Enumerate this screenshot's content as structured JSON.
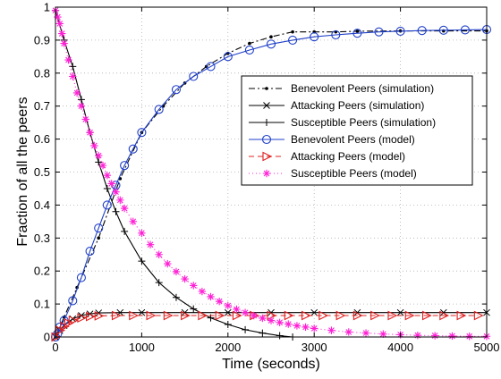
{
  "chart_data": {
    "type": "line",
    "title": "",
    "xlabel": "Time (seconds)",
    "ylabel": "Fraction of all the peers",
    "xlim": [
      0,
      5000
    ],
    "ylim": [
      0,
      1
    ],
    "xticks": [
      0,
      1000,
      2000,
      3000,
      4000,
      5000
    ],
    "yticks": [
      0,
      0.1,
      0.2,
      0.3,
      0.4,
      0.5,
      0.6,
      0.7,
      0.8,
      0.9,
      1
    ],
    "xtick_labels": [
      "0",
      "1000",
      "2000",
      "3000",
      "4000",
      "5000"
    ],
    "ytick_labels": [
      "0",
      "0.1",
      "0.2",
      "0.3",
      "0.4",
      "0.5",
      "0.6",
      "0.7",
      "0.8",
      "0.9",
      "1"
    ],
    "grid": true,
    "legend_position": "right",
    "series": [
      {
        "name": "Benevolent Peers (simulation)",
        "color": "#000000",
        "dash": "dashdot",
        "marker": "dot",
        "x": [
          0,
          100,
          250,
          500,
          750,
          1000,
          1250,
          1500,
          1750,
          2000,
          2250,
          2500,
          2750,
          3000,
          3250,
          3500,
          4000,
          4500,
          5000
        ],
        "y": [
          0,
          0.06,
          0.15,
          0.3,
          0.48,
          0.62,
          0.7,
          0.77,
          0.82,
          0.86,
          0.89,
          0.91,
          0.925,
          0.925,
          0.925,
          0.927,
          0.928,
          0.928,
          0.928
        ]
      },
      {
        "name": "Attacking Peers (simulation)",
        "color": "#000000",
        "dash": "solid",
        "marker": "x",
        "x": [
          0,
          50,
          100,
          200,
          300,
          400,
          500,
          750,
          1000,
          1500,
          2000,
          2500,
          3000,
          3500,
          4000,
          4500,
          5000
        ],
        "y": [
          0,
          0.02,
          0.035,
          0.055,
          0.065,
          0.07,
          0.073,
          0.074,
          0.074,
          0.074,
          0.074,
          0.074,
          0.074,
          0.074,
          0.074,
          0.074,
          0.074
        ]
      },
      {
        "name": "Susceptible Peers (simulation)",
        "color": "#000000",
        "dash": "solid",
        "marker": "plus",
        "x": [
          0,
          100,
          200,
          300,
          400,
          500,
          600,
          700,
          800,
          1000,
          1200,
          1400,
          1600,
          1800,
          2000,
          2200,
          2400,
          2600,
          2750
        ],
        "y": [
          0.99,
          0.9,
          0.82,
          0.72,
          0.62,
          0.53,
          0.45,
          0.38,
          0.32,
          0.23,
          0.165,
          0.12,
          0.085,
          0.058,
          0.038,
          0.022,
          0.012,
          0.004,
          0
        ]
      },
      {
        "name": "Benevolent Peers (model)",
        "color": "#1f3fc8",
        "dash": "solid",
        "marker": "circle",
        "x": [
          0,
          25,
          50,
          100,
          200,
          300,
          400,
          500,
          600,
          700,
          800,
          900,
          1000,
          1200,
          1400,
          1600,
          1800,
          2000,
          2250,
          2500,
          2750,
          3000,
          3250,
          3500,
          3750,
          4000,
          4250,
          4500,
          4750,
          5000
        ],
        "y": [
          0,
          0.01,
          0.03,
          0.05,
          0.11,
          0.18,
          0.26,
          0.33,
          0.4,
          0.46,
          0.52,
          0.57,
          0.62,
          0.69,
          0.75,
          0.79,
          0.82,
          0.85,
          0.87,
          0.888,
          0.9,
          0.91,
          0.916,
          0.921,
          0.925,
          0.927,
          0.929,
          0.93,
          0.931,
          0.932
        ]
      },
      {
        "name": "Attacking Peers (model)",
        "color": "#e02020",
        "dash": "dash",
        "marker": "triangle-right",
        "x": [
          0,
          50,
          100,
          150,
          200,
          300,
          400,
          500,
          700,
          900,
          1100,
          1300,
          1500,
          1700,
          1900,
          2100,
          2300,
          2500,
          2700,
          2900,
          3100,
          3300,
          3500,
          3700,
          3900,
          4100,
          4300,
          4500,
          4700,
          4900
        ],
        "y": [
          0,
          0.02,
          0.032,
          0.042,
          0.05,
          0.058,
          0.062,
          0.064,
          0.065,
          0.065,
          0.065,
          0.065,
          0.065,
          0.065,
          0.065,
          0.065,
          0.065,
          0.065,
          0.065,
          0.065,
          0.065,
          0.065,
          0.065,
          0.065,
          0.065,
          0.065,
          0.065,
          0.065,
          0.065,
          0.065
        ]
      },
      {
        "name": "Susceptible Peers (model)",
        "color": "#ff1fd4",
        "dash": "dot",
        "marker": "asterisk",
        "x": [
          0,
          25,
          50,
          75,
          100,
          150,
          200,
          250,
          300,
          350,
          400,
          450,
          500,
          550,
          600,
          650,
          700,
          750,
          800,
          900,
          1000,
          1100,
          1200,
          1300,
          1400,
          1500,
          1600,
          1700,
          1800,
          1900,
          2000,
          2100,
          2200,
          2300,
          2400,
          2500,
          2600,
          2700,
          2800,
          2900,
          3000,
          3200,
          3400,
          3600,
          3800,
          4000,
          4200,
          4400,
          4600,
          4800,
          5000
        ],
        "y": [
          0.99,
          0.97,
          0.95,
          0.92,
          0.89,
          0.84,
          0.79,
          0.74,
          0.7,
          0.66,
          0.62,
          0.58,
          0.55,
          0.52,
          0.49,
          0.465,
          0.44,
          0.415,
          0.39,
          0.35,
          0.315,
          0.28,
          0.25,
          0.222,
          0.198,
          0.176,
          0.156,
          0.138,
          0.122,
          0.108,
          0.095,
          0.084,
          0.074,
          0.065,
          0.057,
          0.05,
          0.044,
          0.039,
          0.034,
          0.03,
          0.026,
          0.02,
          0.015,
          0.012,
          0.009,
          0.007,
          0.005,
          0.004,
          0.003,
          0.002,
          0.002
        ]
      }
    ]
  }
}
